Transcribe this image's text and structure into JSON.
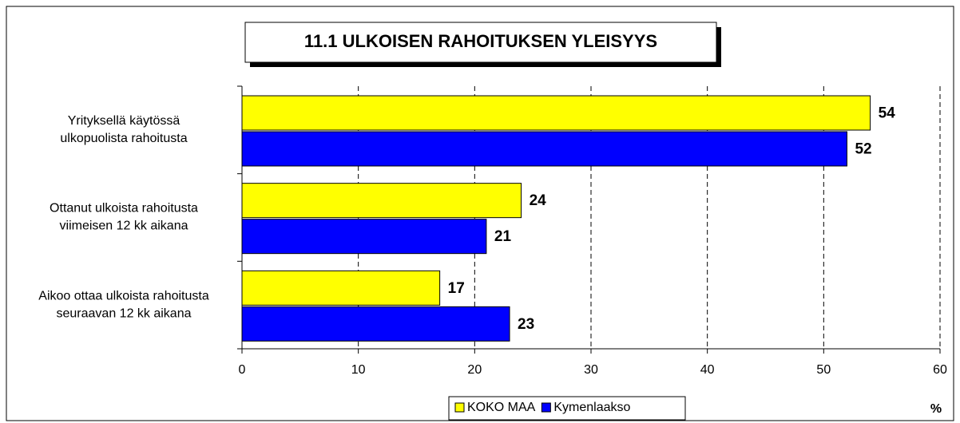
{
  "chart_data": {
    "type": "bar",
    "orientation": "horizontal",
    "title": "11.1 ULKOISEN RAHOITUKSEN YLEISYYS",
    "categories": [
      [
        "Yrityksellä käytössä",
        "ulkopuolista rahoitusta"
      ],
      [
        "Ottanut ulkoista rahoitusta",
        "viimeisen 12 kk aikana"
      ],
      [
        "Aikoo ottaa ulkoista rahoitusta",
        "seuraavan 12 kk aikana"
      ]
    ],
    "series": [
      {
        "name": "KOKO MAA",
        "color": "#ffff00",
        "values": [
          54,
          24,
          17
        ]
      },
      {
        "name": "Kymenlaakso",
        "color": "#0000ff",
        "values": [
          52,
          21,
          23
        ]
      }
    ],
    "xlim": [
      0,
      60
    ],
    "xticks": [
      0,
      10,
      20,
      30,
      40,
      50,
      60
    ],
    "x_label": "%",
    "grid": true,
    "legend": "bottom"
  }
}
